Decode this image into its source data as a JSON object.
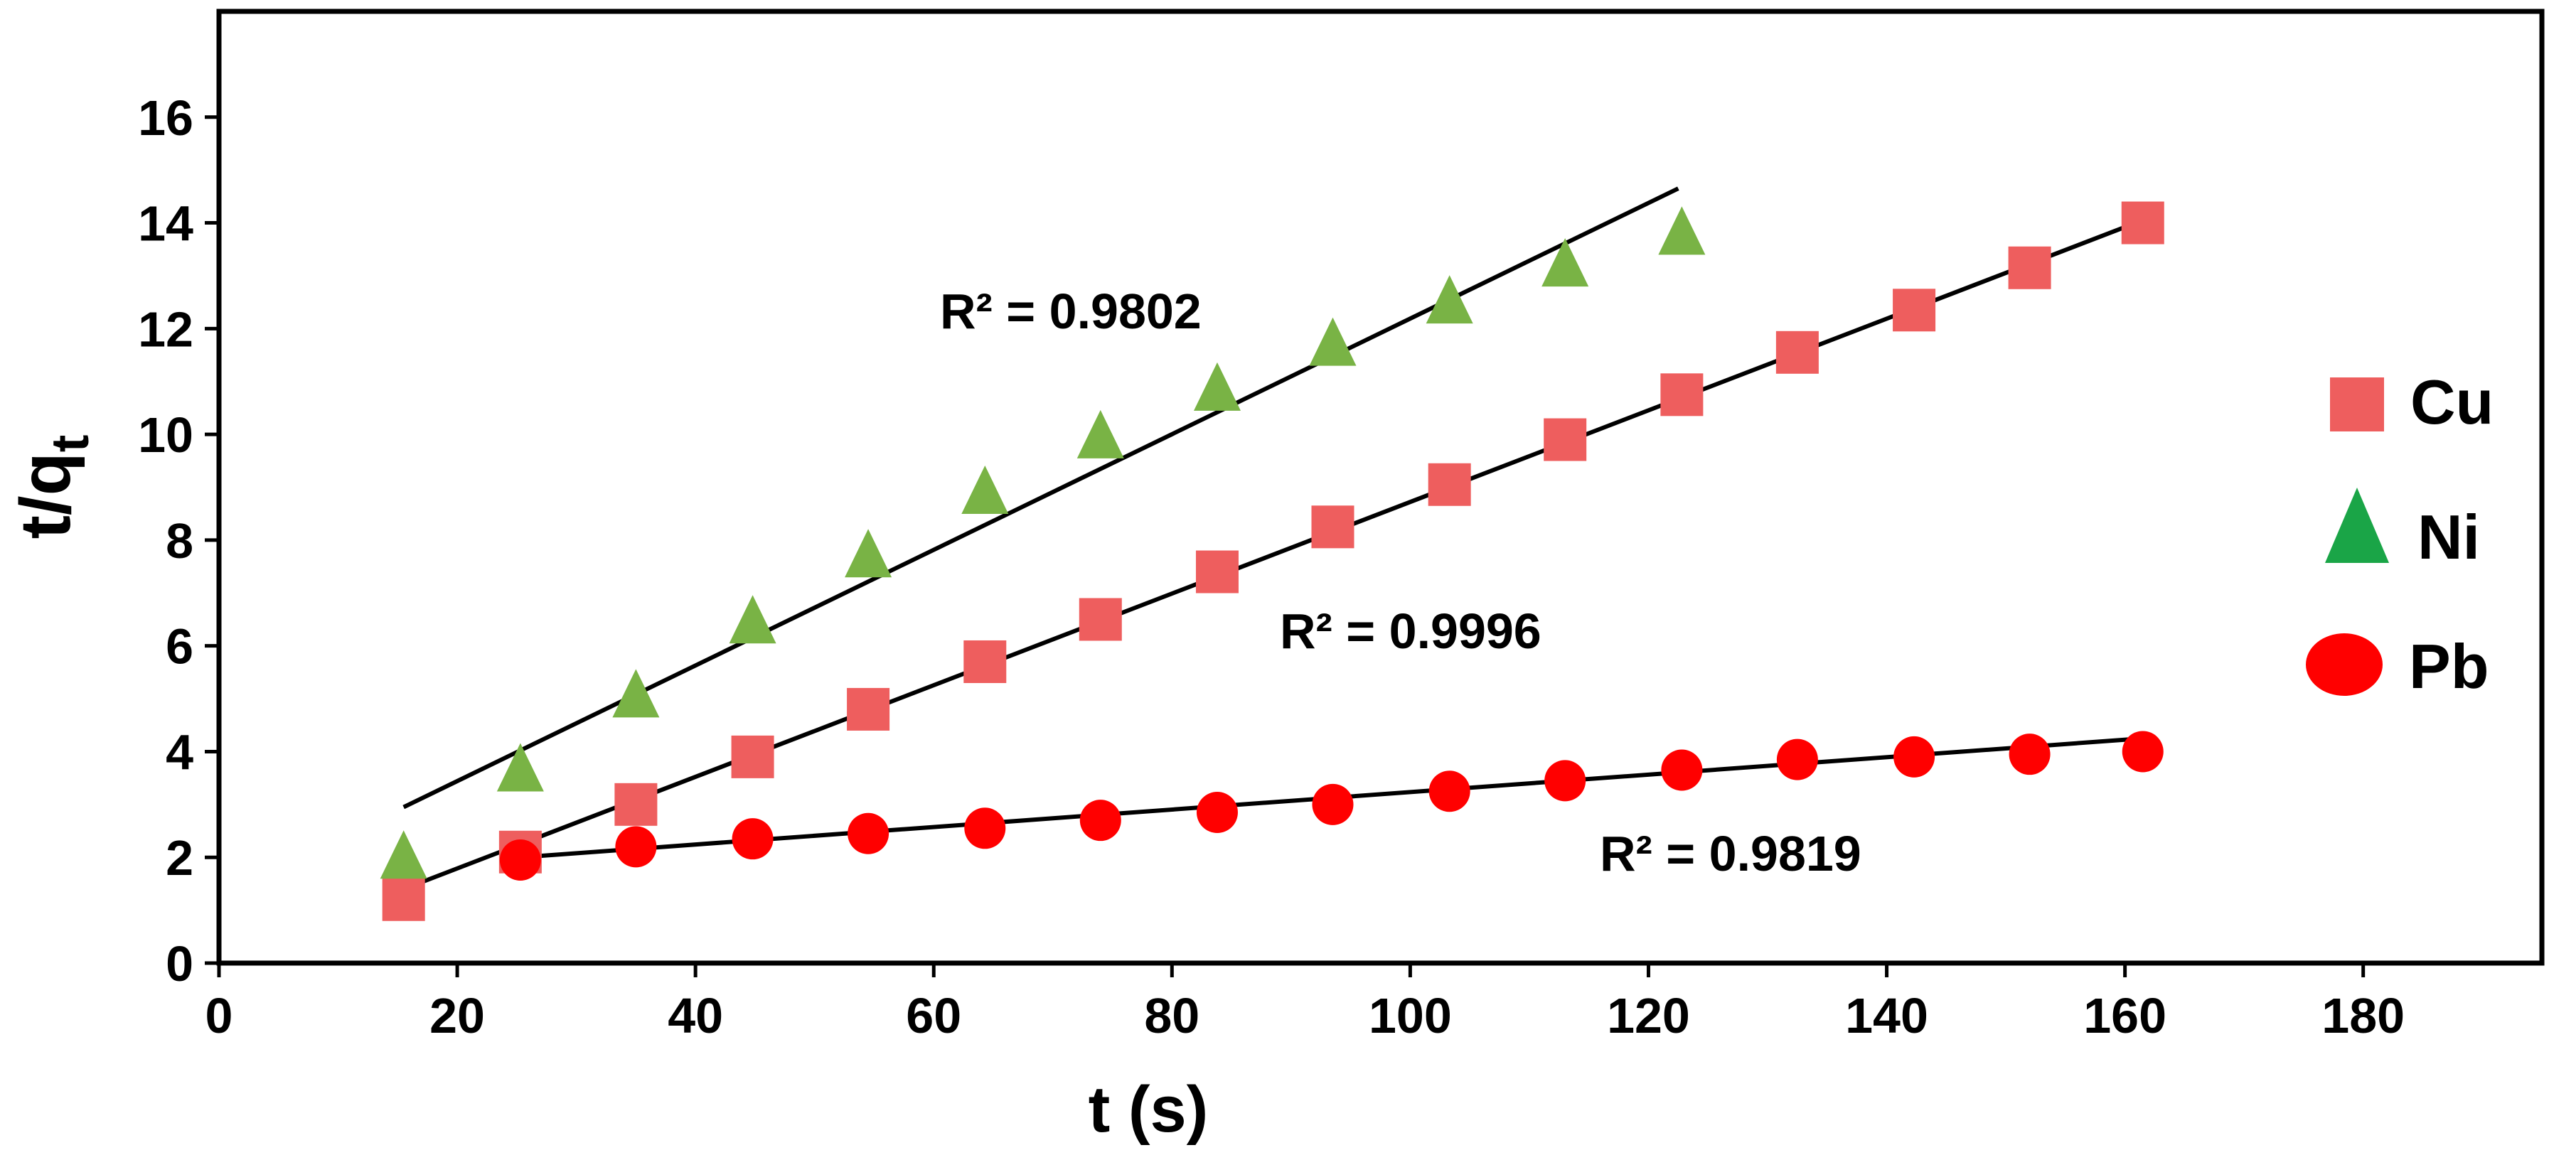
{
  "chart_data": {
    "type": "scatter",
    "title": "",
    "xlabel_main": "t",
    "xlabel_unit": "(s)",
    "ylabel_main": "t/q",
    "ylabel_sub": "t",
    "xlim": [
      0,
      195
    ],
    "ylim": [
      0,
      18
    ],
    "xticks": [
      0,
      20,
      40,
      60,
      80,
      100,
      120,
      140,
      160,
      180
    ],
    "yticks": [
      0,
      2,
      4,
      6,
      8,
      10,
      12,
      14,
      16
    ],
    "xtick_labels": [
      "0",
      "20",
      "40",
      "60",
      "80",
      "100",
      "120",
      "140",
      "160",
      "180"
    ],
    "ytick_labels": [
      "0",
      "2",
      "4",
      "6",
      "8",
      "10",
      "12",
      "14",
      "16"
    ],
    "grid": false,
    "legend_position": "right",
    "series": [
      {
        "name": "Cu",
        "marker": "square",
        "color": "#ee5e5e",
        "x": [
          15.5,
          25.3,
          35.0,
          44.8,
          54.5,
          64.3,
          74.0,
          83.8,
          93.5,
          103.3,
          113.0,
          122.8,
          132.5,
          142.3,
          152.0,
          161.5
        ],
        "y": [
          1.2,
          2.1,
          3.0,
          3.9,
          4.8,
          5.7,
          6.5,
          7.4,
          8.25,
          9.05,
          9.9,
          10.75,
          11.55,
          12.35,
          13.15,
          14.0
        ],
        "fit": {
          "x1": 15.5,
          "y1": 1.4,
          "x2": 161.5,
          "y2": 14.05
        },
        "r2_label": "R² = 0.9996"
      },
      {
        "name": "Ni",
        "marker": "triangle",
        "color": "#79b345",
        "x": [
          15.5,
          25.3,
          35.0,
          44.8,
          54.5,
          64.3,
          74.0,
          83.8,
          93.5,
          103.3,
          113.0,
          122.8
        ],
        "y": [
          2.0,
          3.65,
          5.05,
          6.45,
          7.7,
          8.9,
          9.95,
          10.85,
          11.7,
          12.5,
          13.2,
          13.8
        ],
        "fit": {
          "x1": 15.5,
          "y1": 2.95,
          "x2": 122.5,
          "y2": 14.65
        },
        "r2_label": "R² = 0.9802"
      },
      {
        "name": "Pb",
        "marker": "circle",
        "color": "#ff0000",
        "x": [
          25.3,
          35.0,
          44.8,
          54.5,
          64.3,
          74.0,
          83.8,
          93.5,
          103.3,
          113.0,
          122.8,
          132.5,
          142.3,
          152.0,
          161.5
        ],
        "y": [
          1.95,
          2.2,
          2.35,
          2.45,
          2.55,
          2.7,
          2.85,
          3.0,
          3.25,
          3.45,
          3.65,
          3.85,
          3.9,
          3.95,
          4.0
        ],
        "fit": {
          "x1": 25.3,
          "y1": 2.0,
          "x2": 161.5,
          "y2": 4.25
        },
        "r2_label": "R² = 0.9819"
      }
    ]
  },
  "legend": {
    "items": [
      {
        "label": "Cu",
        "color": "#ee5e5e",
        "marker": "square"
      },
      {
        "label": "Ni",
        "color": "#1aa547",
        "marker": "triangle"
      },
      {
        "label": "Pb",
        "color": "#ff0000",
        "marker": "circle"
      }
    ]
  }
}
